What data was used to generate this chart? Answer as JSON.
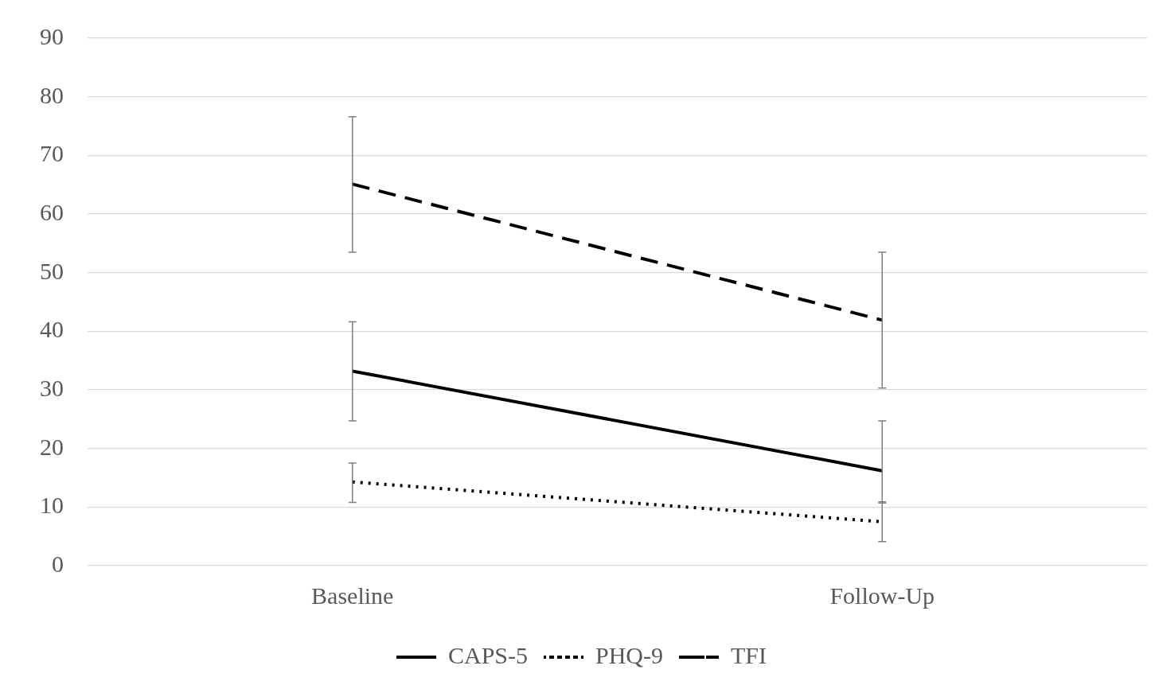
{
  "chart_data": {
    "type": "line",
    "categories": [
      "Baseline",
      "Follow-Up"
    ],
    "series": [
      {
        "name": "CAPS-5",
        "color": "#000000",
        "line_style": "solid",
        "values": [
          33.2,
          16.2
        ],
        "errors": [
          [
            24.7,
            41.6
          ],
          [
            10.7,
            24.7
          ]
        ]
      },
      {
        "name": "PHQ-9",
        "color": "#000000",
        "line_style": "dotted",
        "values": [
          14.3,
          7.5
        ],
        "errors": [
          [
            10.8,
            17.5
          ],
          [
            4.1,
            10.9
          ]
        ]
      },
      {
        "name": "TFI",
        "color": "#000000",
        "line_style": "dashed",
        "values": [
          65.1,
          41.9
        ],
        "errors": [
          [
            53.5,
            76.6
          ],
          [
            30.3,
            53.5
          ]
        ]
      }
    ],
    "ylim": [
      0,
      90
    ],
    "yticks": [
      0,
      10,
      20,
      30,
      40,
      50,
      60,
      70,
      80,
      90
    ],
    "grid": "y",
    "legend": "bottom",
    "marker": "none"
  }
}
